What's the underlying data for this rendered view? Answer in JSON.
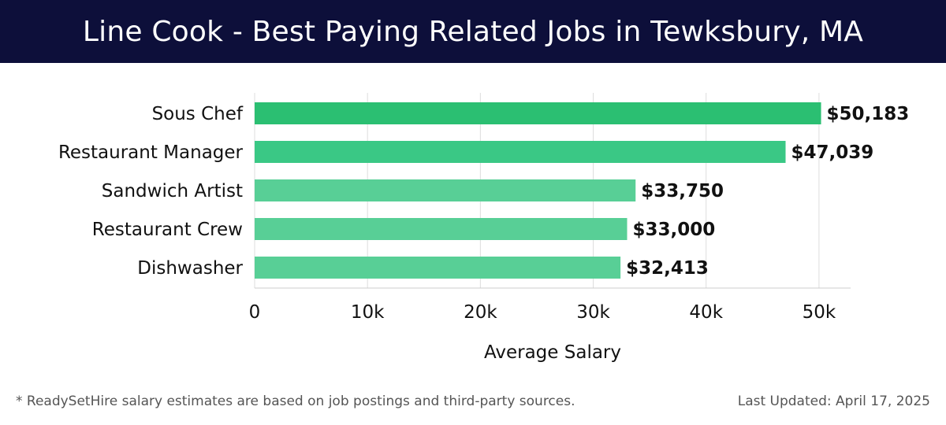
{
  "header": {
    "title": "Line Cook - Best Paying Related Jobs in Tewksbury, MA"
  },
  "chart_data": {
    "type": "bar",
    "orientation": "horizontal",
    "title": "Line Cook - Best Paying Related Jobs in Tewksbury, MA",
    "categories": [
      "Sous Chef",
      "Restaurant Manager",
      "Sandwich Artist",
      "Restaurant Crew",
      "Dishwasher"
    ],
    "values": [
      50183,
      47039,
      33750,
      33000,
      32413
    ],
    "value_labels": [
      "$50,183",
      "$47,039",
      "$33,750",
      "$33,000",
      "$32,413"
    ],
    "xlabel": "Average Salary",
    "ylabel": "",
    "xlim": [
      0,
      52800
    ],
    "xticks": [
      0,
      10000,
      20000,
      30000,
      40000,
      50000
    ],
    "xtick_labels": [
      "0",
      "10k",
      "20k",
      "30k",
      "40k",
      "50k"
    ],
    "grid": "vertical",
    "legend": "none",
    "colors": {
      "bar_top": "#2bbf72",
      "bar_mid": "#3ac885",
      "bar_low": "#58cf96",
      "grid": "#dddddd",
      "axis": "#cccccc",
      "text": "#111111"
    }
  },
  "footer": {
    "note": "* ReadySetHire salary estimates are based on job postings and third-party sources.",
    "updated": "Last Updated: April 17, 2025"
  }
}
